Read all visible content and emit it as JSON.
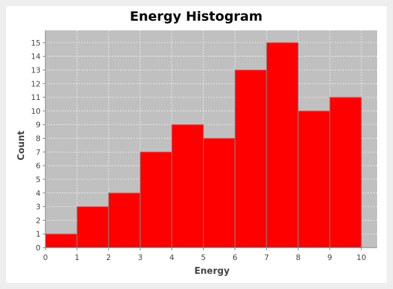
{
  "chart_data": {
    "type": "bar",
    "title": "Energy Histogram",
    "xlabel": "Energy",
    "ylabel": "Count",
    "bins": [
      {
        "x0": 0,
        "x1": 1,
        "count": 1
      },
      {
        "x0": 1,
        "x1": 2,
        "count": 3
      },
      {
        "x0": 2,
        "x1": 3,
        "count": 4
      },
      {
        "x0": 3,
        "x1": 4,
        "count": 7
      },
      {
        "x0": 4,
        "x1": 5,
        "count": 9
      },
      {
        "x0": 5,
        "x1": 6,
        "count": 8
      },
      {
        "x0": 6,
        "x1": 7,
        "count": 13
      },
      {
        "x0": 7,
        "x1": 8,
        "count": 15
      },
      {
        "x0": 8,
        "x1": 9,
        "count": 10
      },
      {
        "x0": 9,
        "x1": 10,
        "count": 11
      }
    ],
    "xlim": [
      0,
      10.5
    ],
    "ylim": [
      0,
      15.9
    ],
    "x_ticks": [
      "0",
      "1",
      "2",
      "3",
      "4",
      "5",
      "6",
      "7",
      "8",
      "9",
      "10"
    ],
    "y_ticks": [
      "0",
      "1",
      "2",
      "3",
      "4",
      "5",
      "6",
      "7",
      "8",
      "9",
      "10",
      "11",
      "12",
      "13",
      "14",
      "15"
    ],
    "grid": true,
    "bar_color": "#ff0000",
    "plot_background": "#c0c0c0"
  }
}
